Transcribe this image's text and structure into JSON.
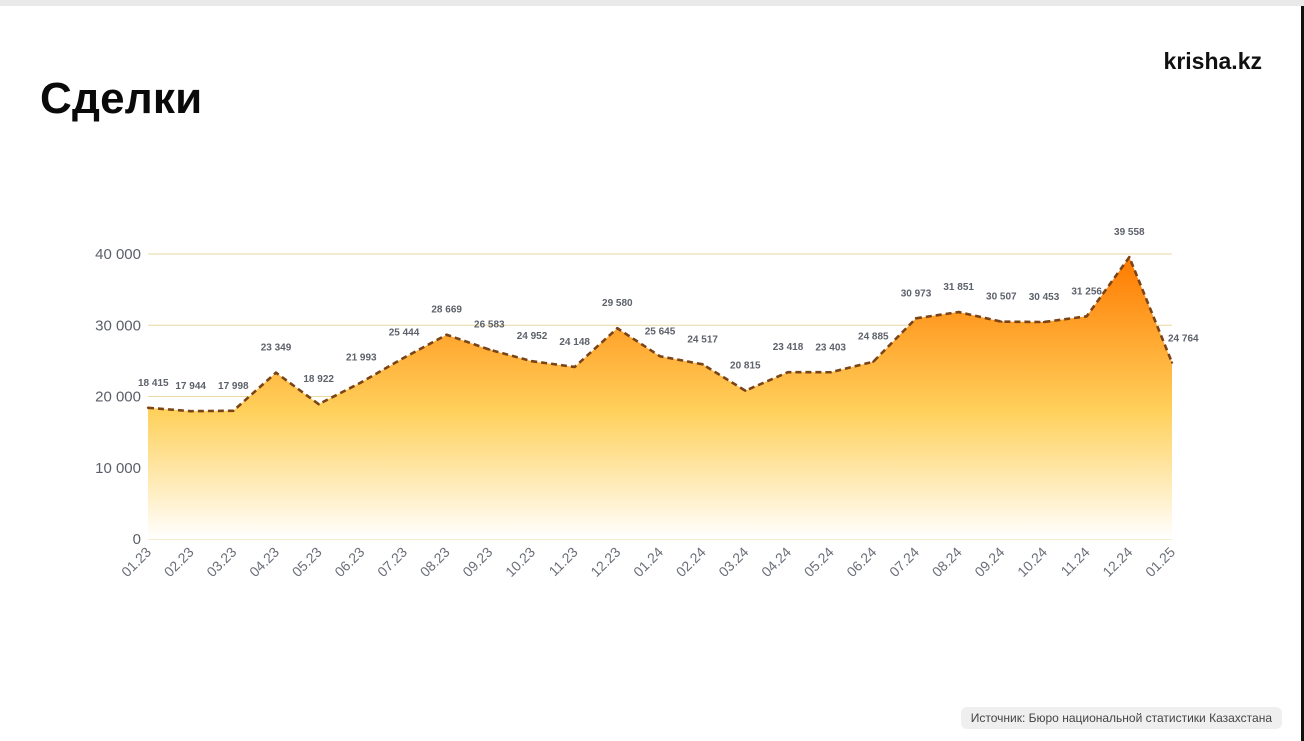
{
  "header": {
    "title": "Сделки",
    "logo": "krisha.kz"
  },
  "footer": {
    "source": "Источник: Бюро национальной статистики Казахстана"
  },
  "colors": {
    "line": "#7a4417",
    "area_top": "#ff7a00",
    "area_mid": "#ffd15c",
    "area_bottom": "#ffffff",
    "grid": "#ead9a0"
  },
  "chart_data": {
    "type": "area",
    "categories": [
      "01.23",
      "02.23",
      "03.23",
      "04.23",
      "05.23",
      "06.23",
      "07.23",
      "08.23",
      "09.23",
      "10.23",
      "11.23",
      "12.23",
      "01.24",
      "02.24",
      "03.24",
      "04.24",
      "05.24",
      "06.24",
      "07.24",
      "08.24",
      "09.24",
      "10.24",
      "11.24",
      "12.24",
      "01.25"
    ],
    "values": [
      18415,
      17944,
      17998,
      23349,
      18922,
      21993,
      25444,
      28669,
      26583,
      24952,
      24148,
      29580,
      25645,
      24517,
      20815,
      23418,
      23403,
      24885,
      30973,
      31851,
      30507,
      30453,
      31256,
      39558,
      24764
    ],
    "value_labels": [
      "18 415",
      "17 944",
      "17 998",
      "23 349",
      "18 922",
      "21 993",
      "25 444",
      "28 669",
      "26 583",
      "24 952",
      "24 148",
      "29 580",
      "25 645",
      "24 517",
      "20 815",
      "23 418",
      "23 403",
      "24 885",
      "30 973",
      "31 851",
      "30 507",
      "30 453",
      "31 256",
      "39 558",
      "24 764"
    ],
    "yticks": [
      0,
      10000,
      20000,
      30000,
      40000
    ],
    "ytick_labels": [
      "0",
      "10 000",
      "20 000",
      "30 000",
      "40 000"
    ],
    "ylim": [
      0,
      40000
    ],
    "grid": "horizontal",
    "line_style": "dashed",
    "title": "",
    "xlabel": "",
    "ylabel": ""
  }
}
